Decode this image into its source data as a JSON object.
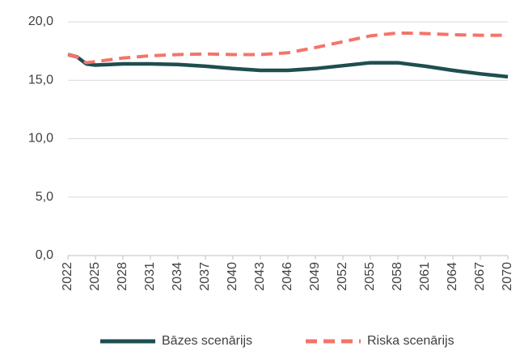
{
  "chart_data": {
    "type": "line",
    "x": [
      2022,
      2023,
      2024,
      2025,
      2028,
      2031,
      2034,
      2037,
      2040,
      2043,
      2046,
      2049,
      2052,
      2055,
      2058,
      2061,
      2064,
      2067,
      2070
    ],
    "series": [
      {
        "name": "Bāzes scenārijs",
        "color": "#1f4e4f",
        "dash": false,
        "values": [
          17.2,
          17.0,
          16.4,
          16.3,
          16.4,
          16.4,
          16.35,
          16.2,
          16.0,
          15.85,
          15.85,
          16.0,
          16.25,
          16.5,
          16.5,
          16.2,
          15.85,
          15.55,
          15.3
        ]
      },
      {
        "name": "Riska scenārijs",
        "color": "#f4746a",
        "dash": true,
        "values": [
          17.2,
          17.0,
          16.5,
          16.6,
          16.9,
          17.1,
          17.2,
          17.25,
          17.2,
          17.2,
          17.35,
          17.8,
          18.3,
          18.8,
          19.05,
          19.0,
          18.9,
          18.85,
          18.85
        ]
      }
    ],
    "xlim": [
      2022,
      2070
    ],
    "xticks": [
      2022,
      2025,
      2028,
      2031,
      2034,
      2037,
      2040,
      2043,
      2046,
      2049,
      2052,
      2055,
      2058,
      2061,
      2064,
      2067,
      2070
    ],
    "ylim": [
      0,
      20
    ],
    "yticks": [
      {
        "value": 0,
        "label": "0,0"
      },
      {
        "value": 5,
        "label": "5,0"
      },
      {
        "value": 10,
        "label": "10,0"
      },
      {
        "value": 15,
        "label": "15,0"
      },
      {
        "value": 20,
        "label": "20,0"
      }
    ],
    "grid": true,
    "legend": "bottom"
  }
}
